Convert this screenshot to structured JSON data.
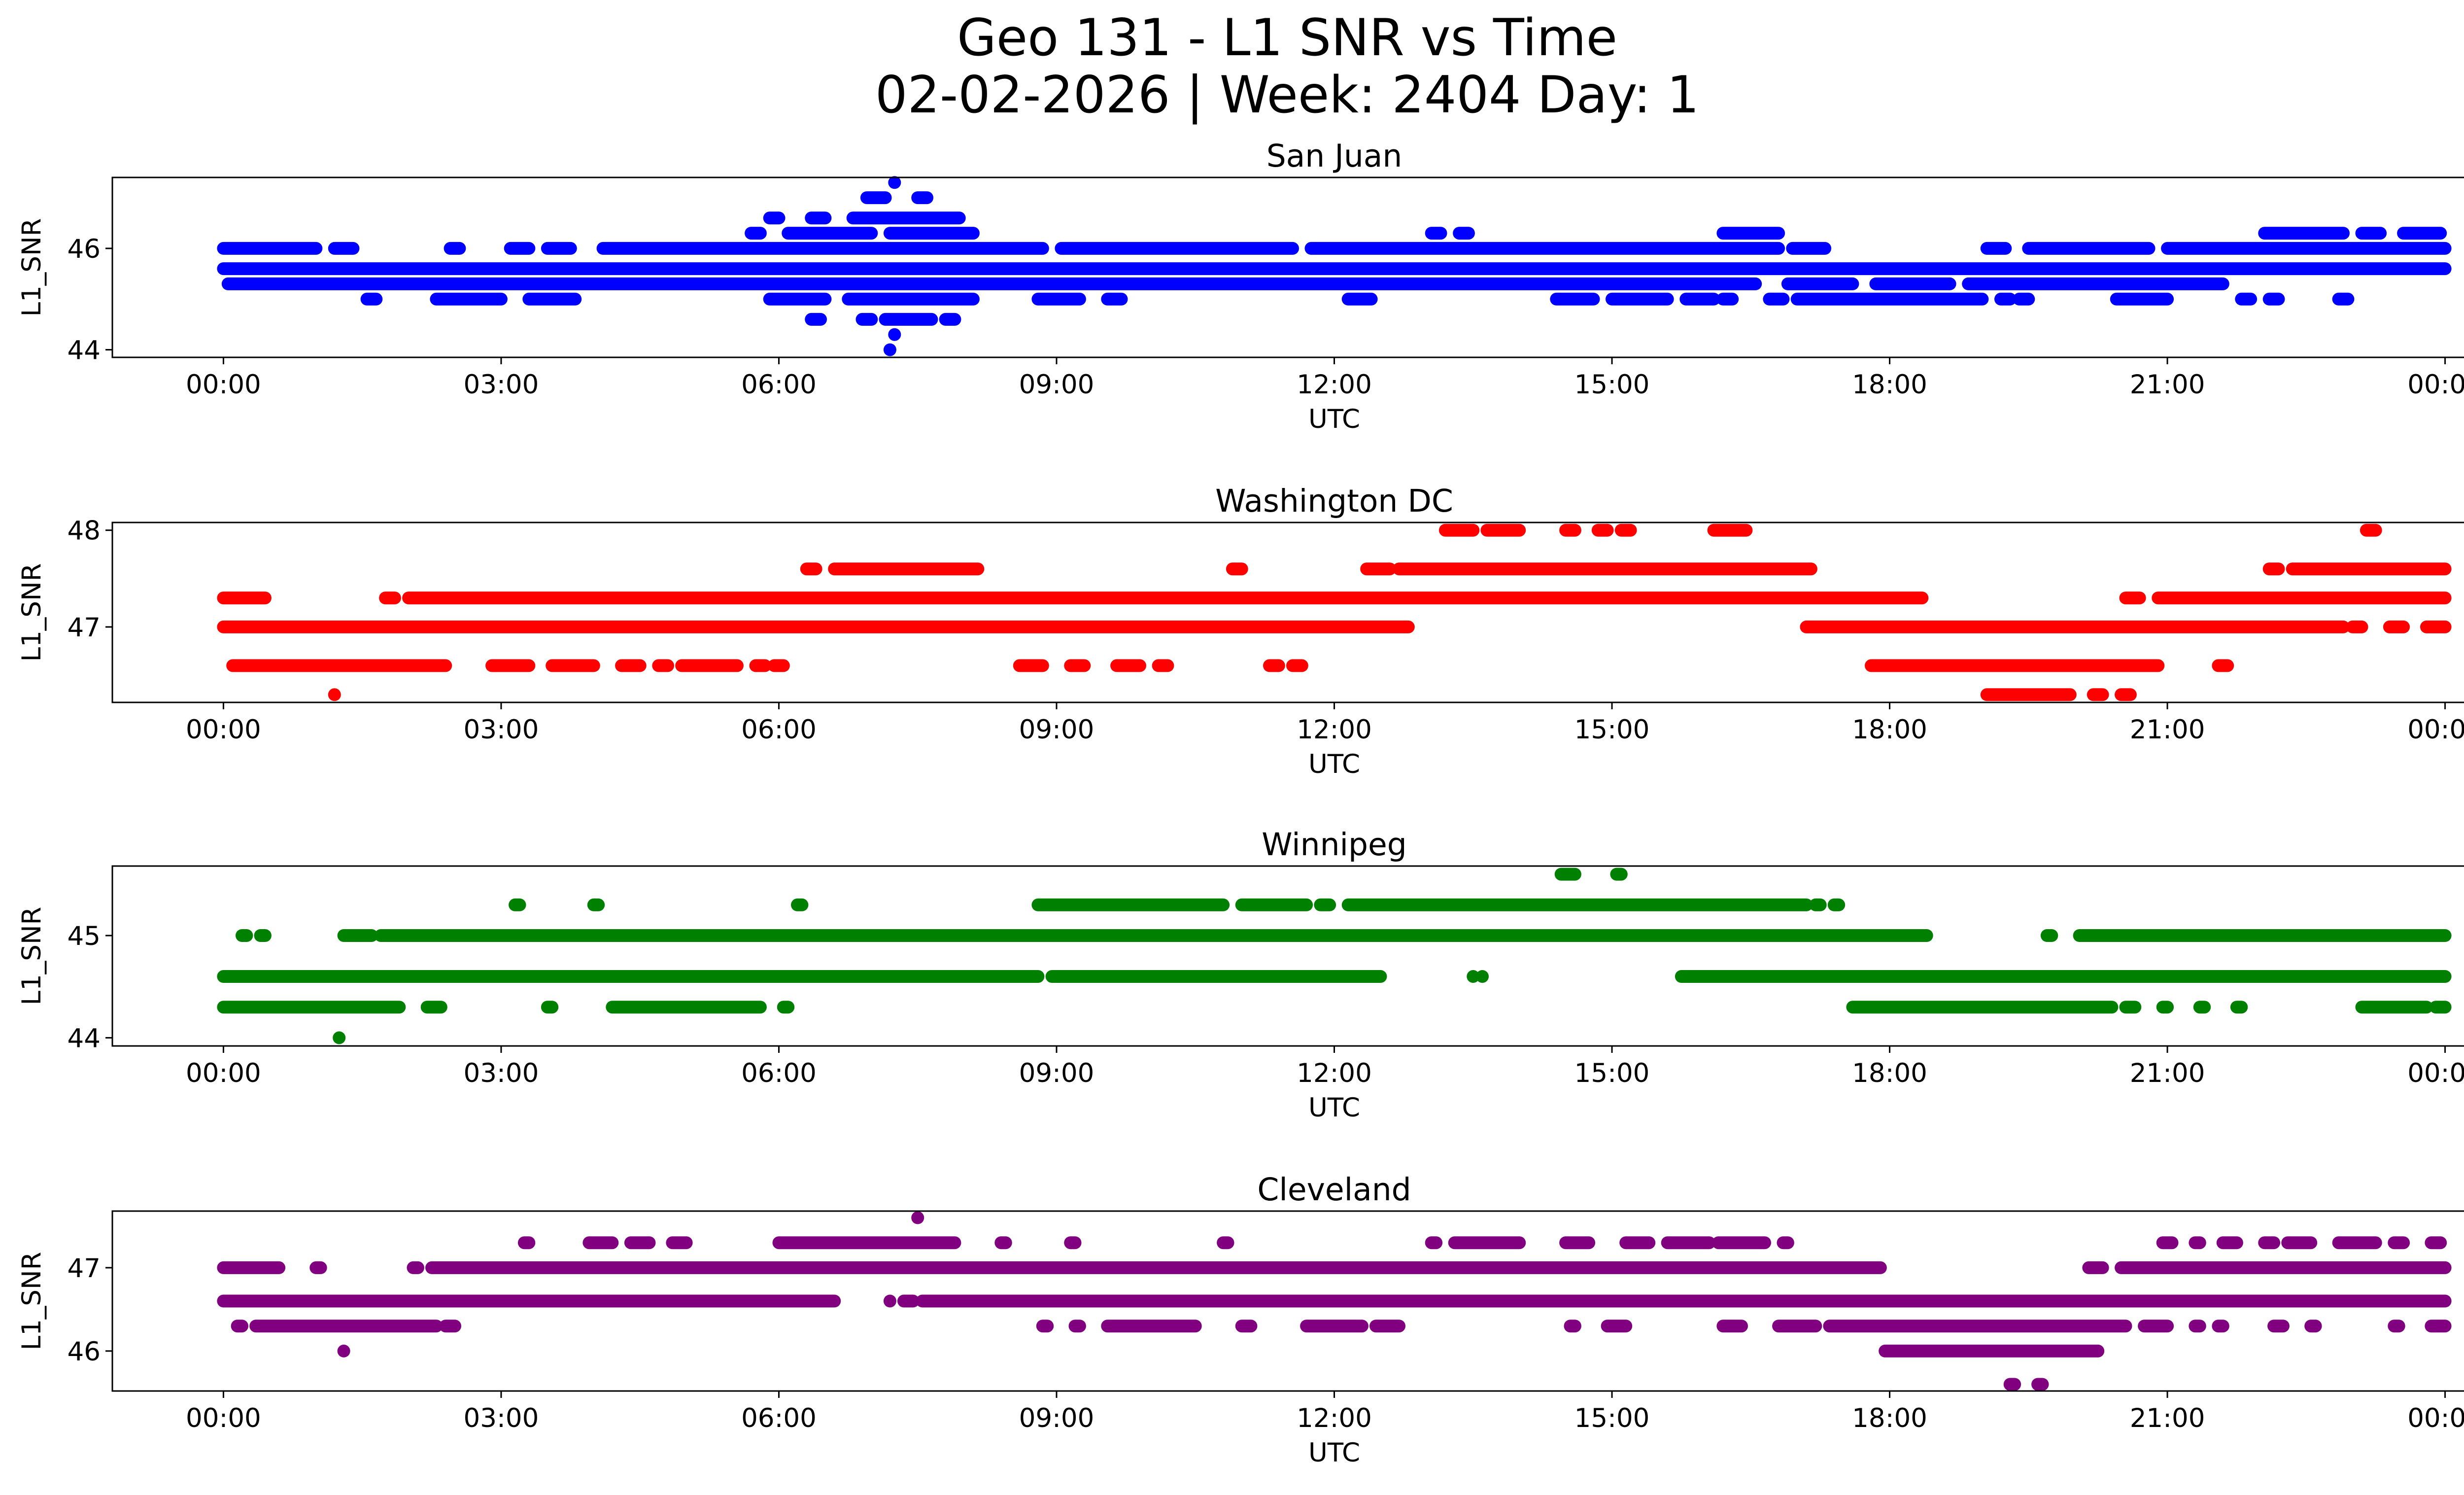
{
  "figure": {
    "title_line1": "Geo 131 - L1 SNR vs Time",
    "title_line2": "02-02-2026 | Week: 2404 Day: 1"
  },
  "chart_data": [
    {
      "type": "scatter",
      "title": "San Juan",
      "xlabel": "UTC",
      "ylabel": "L1_SNR",
      "color": "#0000ff",
      "xticks": [
        "00:00",
        "03:00",
        "06:00",
        "09:00",
        "12:00",
        "15:00",
        "18:00",
        "21:00",
        "00:00"
      ],
      "xlim_hours": [
        -1.2,
        25.2
      ],
      "ylim": [
        43.85,
        47.4
      ],
      "yticks": [
        44,
        46
      ],
      "levels": [
        44.0,
        44.6,
        45.0,
        45.3,
        45.6,
        46.0,
        46.3,
        46.6,
        47.0,
        47.3
      ],
      "segments": [
        {
          "level": 45.6,
          "ranges": [
            [
              0.0,
              24.0
            ]
          ]
        },
        {
          "level": 45.3,
          "ranges": [
            [
              0.05,
              16.55
            ],
            [
              16.9,
              17.6
            ],
            [
              17.85,
              18.65
            ],
            [
              18.85,
              21.6
            ]
          ]
        },
        {
          "level": 46.0,
          "ranges": [
            [
              0.0,
              1.0
            ],
            [
              1.2,
              1.4
            ],
            [
              2.45,
              2.55
            ],
            [
              3.1,
              3.3
            ],
            [
              3.5,
              3.75
            ],
            [
              4.1,
              8.85
            ],
            [
              9.05,
              11.55
            ],
            [
              11.75,
              16.8
            ],
            [
              16.95,
              17.3
            ],
            [
              19.05,
              19.25
            ],
            [
              19.5,
              20.8
            ],
            [
              21.0,
              24.0
            ]
          ]
        },
        {
          "level": 45.0,
          "ranges": [
            [
              1.55,
              1.65
            ],
            [
              2.3,
              3.0
            ],
            [
              3.3,
              3.8
            ],
            [
              5.9,
              6.5
            ],
            [
              6.75,
              8.1
            ],
            [
              8.8,
              9.25
            ],
            [
              9.55,
              9.7
            ],
            [
              12.15,
              12.4
            ],
            [
              14.4,
              14.8
            ],
            [
              15.0,
              15.6
            ],
            [
              15.8,
              16.1
            ],
            [
              16.2,
              16.3
            ],
            [
              16.7,
              16.85
            ],
            [
              17.0,
              19.0
            ],
            [
              19.2,
              19.3
            ],
            [
              19.4,
              19.5
            ],
            [
              20.45,
              21.0
            ],
            [
              21.8,
              21.9
            ],
            [
              22.1,
              22.2
            ],
            [
              22.85,
              22.95
            ]
          ]
        },
        {
          "level": 46.3,
          "ranges": [
            [
              5.7,
              5.8
            ],
            [
              6.1,
              7.0
            ],
            [
              7.2,
              8.1
            ],
            [
              13.05,
              13.15
            ],
            [
              13.35,
              13.45
            ],
            [
              16.2,
              16.8
            ],
            [
              22.05,
              22.9
            ],
            [
              23.1,
              23.3
            ],
            [
              23.55,
              23.95
            ]
          ]
        },
        {
          "level": 46.6,
          "ranges": [
            [
              5.9,
              6.0
            ],
            [
              6.35,
              6.5
            ],
            [
              6.8,
              7.95
            ]
          ]
        },
        {
          "level": 44.6,
          "ranges": [
            [
              6.35,
              6.45
            ],
            [
              6.9,
              7.0
            ],
            [
              7.15,
              7.65
            ],
            [
              7.8,
              7.9
            ]
          ]
        },
        {
          "level": 47.0,
          "ranges": [
            [
              6.95,
              7.15
            ],
            [
              7.5,
              7.6
            ]
          ]
        }
      ],
      "points": [
        [
          7.25,
          47.3
        ],
        [
          7.25,
          44.3
        ],
        [
          7.2,
          44.0
        ]
      ]
    },
    {
      "type": "scatter",
      "title": "Washington DC",
      "xlabel": "UTC",
      "ylabel": "L1_SNR",
      "color": "#ff0000",
      "xticks": [
        "00:00",
        "03:00",
        "06:00",
        "09:00",
        "12:00",
        "15:00",
        "18:00",
        "21:00",
        "00:00"
      ],
      "xlim_hours": [
        -1.2,
        25.2
      ],
      "ylim": [
        46.22,
        48.08
      ],
      "yticks": [
        47,
        48
      ],
      "levels": [
        46.3,
        46.6,
        47.0,
        47.3,
        47.6,
        48.0
      ],
      "segments": [
        {
          "level": 47.0,
          "ranges": [
            [
              0.0,
              12.8
            ],
            [
              17.1,
              22.9
            ],
            [
              23.0,
              23.1
            ],
            [
              23.4,
              23.55
            ],
            [
              23.8,
              24.0
            ]
          ]
        },
        {
          "level": 47.3,
          "ranges": [
            [
              0.0,
              0.45
            ],
            [
              1.75,
              1.85
            ],
            [
              2.0,
              18.35
            ],
            [
              20.55,
              20.7
            ],
            [
              20.9,
              24.0
            ]
          ]
        },
        {
          "level": 46.6,
          "ranges": [
            [
              0.1,
              2.4
            ],
            [
              2.9,
              3.3
            ],
            [
              3.55,
              4.0
            ],
            [
              4.3,
              4.5
            ],
            [
              4.7,
              4.8
            ],
            [
              4.95,
              5.55
            ],
            [
              5.75,
              5.85
            ],
            [
              5.95,
              6.05
            ],
            [
              8.6,
              8.85
            ],
            [
              9.15,
              9.3
            ],
            [
              9.65,
              9.9
            ],
            [
              10.1,
              10.2
            ],
            [
              11.3,
              11.4
            ],
            [
              11.55,
              11.65
            ],
            [
              17.8,
              20.9
            ],
            [
              21.55,
              21.65
            ]
          ]
        },
        {
          "level": 47.6,
          "ranges": [
            [
              6.3,
              6.4
            ],
            [
              6.6,
              8.15
            ],
            [
              10.9,
              11.0
            ],
            [
              12.35,
              12.6
            ],
            [
              12.7,
              17.15
            ],
            [
              22.1,
              22.2
            ],
            [
              22.35,
              24.0
            ]
          ]
        },
        {
          "level": 46.3,
          "ranges": [
            [
              19.05,
              19.95
            ],
            [
              20.2,
              20.3
            ],
            [
              20.5,
              20.6
            ]
          ]
        },
        {
          "level": 48.0,
          "ranges": [
            [
              13.2,
              13.5
            ],
            [
              13.65,
              14.0
            ],
            [
              14.5,
              14.6
            ],
            [
              14.85,
              14.95
            ],
            [
              15.1,
              15.2
            ],
            [
              16.1,
              16.45
            ],
            [
              23.15,
              23.25
            ]
          ]
        }
      ],
      "points": [
        [
          1.2,
          46.3
        ]
      ]
    },
    {
      "type": "scatter",
      "title": "Winnipeg",
      "xlabel": "UTC",
      "ylabel": "L1_SNR",
      "color": "#008000",
      "xticks": [
        "00:00",
        "03:00",
        "06:00",
        "09:00",
        "12:00",
        "15:00",
        "18:00",
        "21:00",
        "00:00"
      ],
      "xlim_hours": [
        -1.2,
        25.2
      ],
      "ylim": [
        43.92,
        45.68
      ],
      "yticks": [
        44,
        45
      ],
      "levels": [
        44.0,
        44.3,
        44.6,
        45.0,
        45.3,
        45.6
      ],
      "segments": [
        {
          "level": 44.6,
          "ranges": [
            [
              0.0,
              8.8
            ],
            [
              8.95,
              12.5
            ],
            [
              15.75,
              24.0
            ]
          ]
        },
        {
          "level": 44.3,
          "ranges": [
            [
              0.0,
              1.9
            ],
            [
              2.2,
              2.35
            ],
            [
              3.5,
              3.55
            ],
            [
              4.2,
              5.8
            ],
            [
              6.05,
              6.1
            ],
            [
              17.6,
              20.4
            ],
            [
              20.55,
              20.65
            ],
            [
              20.95,
              21.0
            ],
            [
              21.35,
              21.4
            ],
            [
              21.75,
              21.8
            ],
            [
              23.1,
              23.8
            ],
            [
              23.9,
              24.0
            ]
          ]
        },
        {
          "level": 45.0,
          "ranges": [
            [
              0.2,
              0.25
            ],
            [
              0.4,
              0.45
            ],
            [
              1.3,
              1.6
            ],
            [
              1.7,
              18.4
            ],
            [
              19.7,
              19.75
            ],
            [
              20.05,
              24.0
            ]
          ]
        },
        {
          "level": 45.3,
          "ranges": [
            [
              3.15,
              3.2
            ],
            [
              4.0,
              4.05
            ],
            [
              6.2,
              6.25
            ],
            [
              8.8,
              10.8
            ],
            [
              11.0,
              11.7
            ],
            [
              11.85,
              11.95
            ],
            [
              12.15,
              17.1
            ],
            [
              17.2,
              17.25
            ],
            [
              17.4,
              17.45
            ]
          ]
        },
        {
          "level": 45.6,
          "ranges": [
            [
              14.45,
              14.6
            ],
            [
              15.05,
              15.1
            ]
          ]
        }
      ],
      "points": [
        [
          1.25,
          44.0
        ],
        [
          13.5,
          44.6
        ],
        [
          13.6,
          44.6
        ]
      ]
    },
    {
      "type": "scatter",
      "title": "Cleveland",
      "xlabel": "UTC",
      "ylabel": "L1_SNR",
      "color": "#800080",
      "xticks": [
        "00:00",
        "03:00",
        "06:00",
        "09:00",
        "12:00",
        "15:00",
        "18:00",
        "21:00",
        "00:00"
      ],
      "xlim_hours": [
        -1.2,
        25.2
      ],
      "ylim": [
        45.52,
        47.68
      ],
      "yticks": [
        46,
        47
      ],
      "levels": [
        45.6,
        46.0,
        46.3,
        46.6,
        47.0,
        47.3,
        47.6
      ],
      "segments": [
        {
          "level": 46.6,
          "ranges": [
            [
              0.0,
              6.6
            ],
            [
              7.35,
              7.45
            ],
            [
              7.55,
              24.0
            ]
          ]
        },
        {
          "level": 47.0,
          "ranges": [
            [
              0.0,
              0.6
            ],
            [
              1.0,
              1.05
            ],
            [
              2.05,
              2.1
            ],
            [
              2.25,
              17.9
            ],
            [
              20.15,
              20.3
            ],
            [
              20.5,
              24.0
            ]
          ]
        },
        {
          "level": 46.3,
          "ranges": [
            [
              0.15,
              0.2
            ],
            [
              0.35,
              2.3
            ],
            [
              2.4,
              2.5
            ],
            [
              8.85,
              8.9
            ],
            [
              9.2,
              9.25
            ],
            [
              9.55,
              10.5
            ],
            [
              11.0,
              11.1
            ],
            [
              11.7,
              12.3
            ],
            [
              12.45,
              12.7
            ],
            [
              14.55,
              14.6
            ],
            [
              14.95,
              15.15
            ],
            [
              16.2,
              16.4
            ],
            [
              16.8,
              17.2
            ],
            [
              17.35,
              20.55
            ],
            [
              20.75,
              21.0
            ],
            [
              21.3,
              21.35
            ],
            [
              21.55,
              21.6
            ],
            [
              22.15,
              22.25
            ],
            [
              22.55,
              22.6
            ],
            [
              23.45,
              23.5
            ],
            [
              23.85,
              24.0
            ]
          ]
        },
        {
          "level": 47.3,
          "ranges": [
            [
              3.25,
              3.3
            ],
            [
              3.95,
              4.2
            ],
            [
              4.4,
              4.6
            ],
            [
              4.85,
              5.0
            ],
            [
              6.0,
              7.9
            ],
            [
              8.4,
              8.45
            ],
            [
              9.15,
              9.2
            ],
            [
              10.8,
              10.85
            ],
            [
              13.05,
              13.1
            ],
            [
              13.3,
              14.0
            ],
            [
              14.5,
              14.75
            ],
            [
              15.15,
              15.4
            ],
            [
              15.6,
              16.05
            ],
            [
              16.15,
              16.65
            ],
            [
              16.85,
              16.9
            ],
            [
              20.95,
              21.05
            ],
            [
              21.3,
              21.35
            ],
            [
              21.6,
              21.75
            ],
            [
              22.05,
              22.15
            ],
            [
              22.3,
              22.55
            ],
            [
              22.85,
              23.25
            ],
            [
              23.45,
              23.55
            ],
            [
              23.85,
              23.95
            ]
          ]
        },
        {
          "level": 46.0,
          "ranges": [
            [
              17.95,
              20.25
            ]
          ]
        },
        {
          "level": 45.6,
          "ranges": [
            [
              19.3,
              19.35
            ],
            [
              19.6,
              19.65
            ]
          ]
        }
      ],
      "points": [
        [
          1.3,
          46.0
        ],
        [
          7.5,
          47.6
        ],
        [
          7.2,
          46.6
        ]
      ]
    }
  ]
}
